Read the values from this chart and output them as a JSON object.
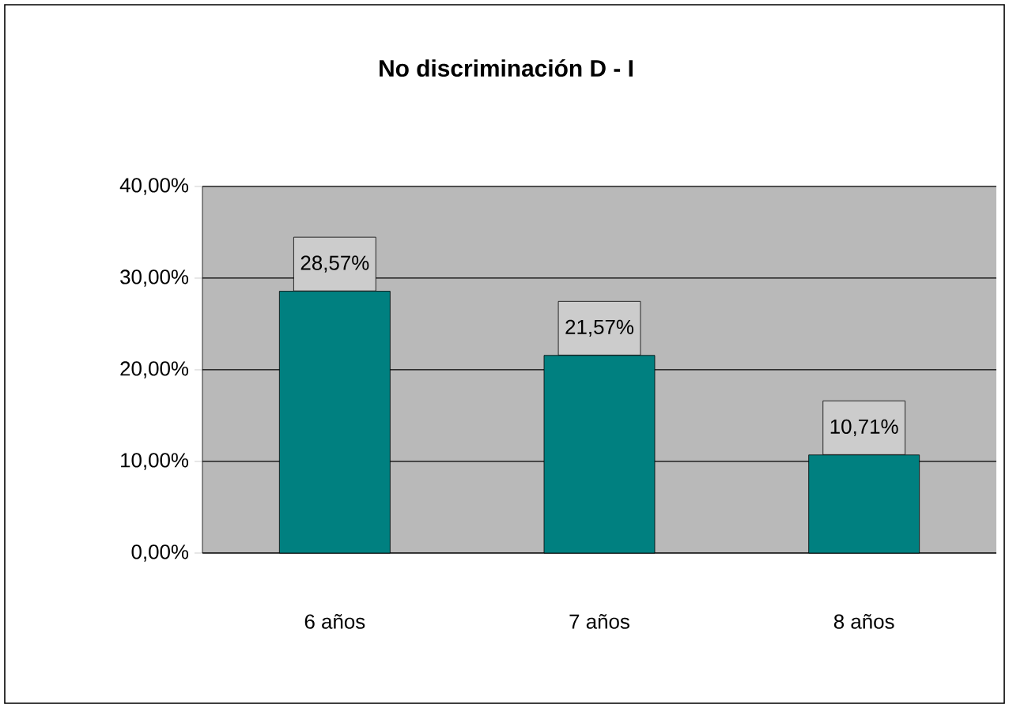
{
  "chart_data": {
    "type": "bar",
    "title": "No discriminación D - I",
    "categories": [
      "6 años",
      "7 años",
      "8 años"
    ],
    "values": [
      28.57,
      21.57,
      10.71
    ],
    "value_labels": [
      "28,57%",
      "21,57%",
      "10,71%"
    ],
    "color": "#008080",
    "ylim": [
      0,
      40
    ],
    "yticks": [
      {
        "value": 0,
        "label": "0,00%"
      },
      {
        "value": 10,
        "label": "10,00%"
      },
      {
        "value": 20,
        "label": "20,00%"
      },
      {
        "value": 30,
        "label": "30,00%"
      },
      {
        "value": 40,
        "label": "40,00%"
      }
    ],
    "grid": "y"
  }
}
